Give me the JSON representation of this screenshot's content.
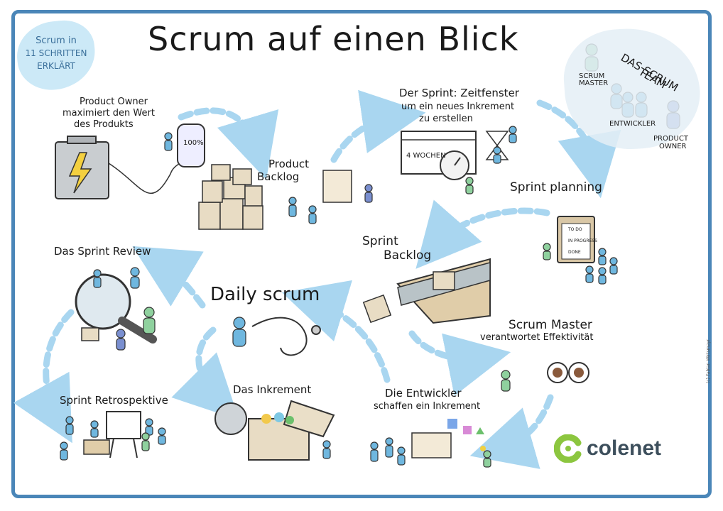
{
  "title": "Scrum auf einen Blick",
  "badge": {
    "line1": "Scrum in",
    "line2": "11 SCHRITTEN",
    "line3": "ERKLÄRT"
  },
  "team": {
    "title_line1": "DAS SCRUM",
    "title_line2": "TEAM",
    "scrum_master": "SCRUM MASTER",
    "developers": "ENTWICKLER",
    "product_owner_l1": "PRODUCT",
    "product_owner_l2": "OWNER"
  },
  "steps": {
    "product_owner_l1": "Product Owner",
    "product_owner_l2": "maximiert den Wert",
    "product_owner_l3": "des Produkts",
    "battery_label": "100%",
    "product_backlog_l1": "Product",
    "product_backlog_l2": "Backlog",
    "sprint_l1": "Der Sprint: Zeitfenster",
    "sprint_l2": "um ein neues Inkrement",
    "sprint_l3": "zu erstellen",
    "sprint_weeks": "4 WOCHEN",
    "sprint_planning": "Sprint planning",
    "clip_todo": "TO DO",
    "clip_progress": "IN PROGRESS",
    "clip_done": "DONE",
    "sprint_backlog_l1": "Sprint",
    "sprint_backlog_l2": "Backlog",
    "daily_scrum": "Daily scrum",
    "sprint_review": "Das Sprint Review",
    "scrum_master_l1": "Scrum Master",
    "scrum_master_l2": "verantwortet Effektivität",
    "retrospective": "Sprint Retrospektive",
    "increment": "Das Inkrement",
    "developers_l1": "Die Entwickler",
    "developers_l2": "schaffen ein Inkrement"
  },
  "logo": {
    "name": "colenet",
    "accent_color": "#8cc63f",
    "text_color": "#3d4f5c"
  },
  "colors": {
    "frame": "#4a86b8",
    "arrow": "#a9d6f0",
    "figure": "#6fb7df",
    "figure_alt": "#7a8fd0",
    "figure_green": "#8fd19e"
  },
  "credit": "(c) Fabian Wirtsmayr"
}
